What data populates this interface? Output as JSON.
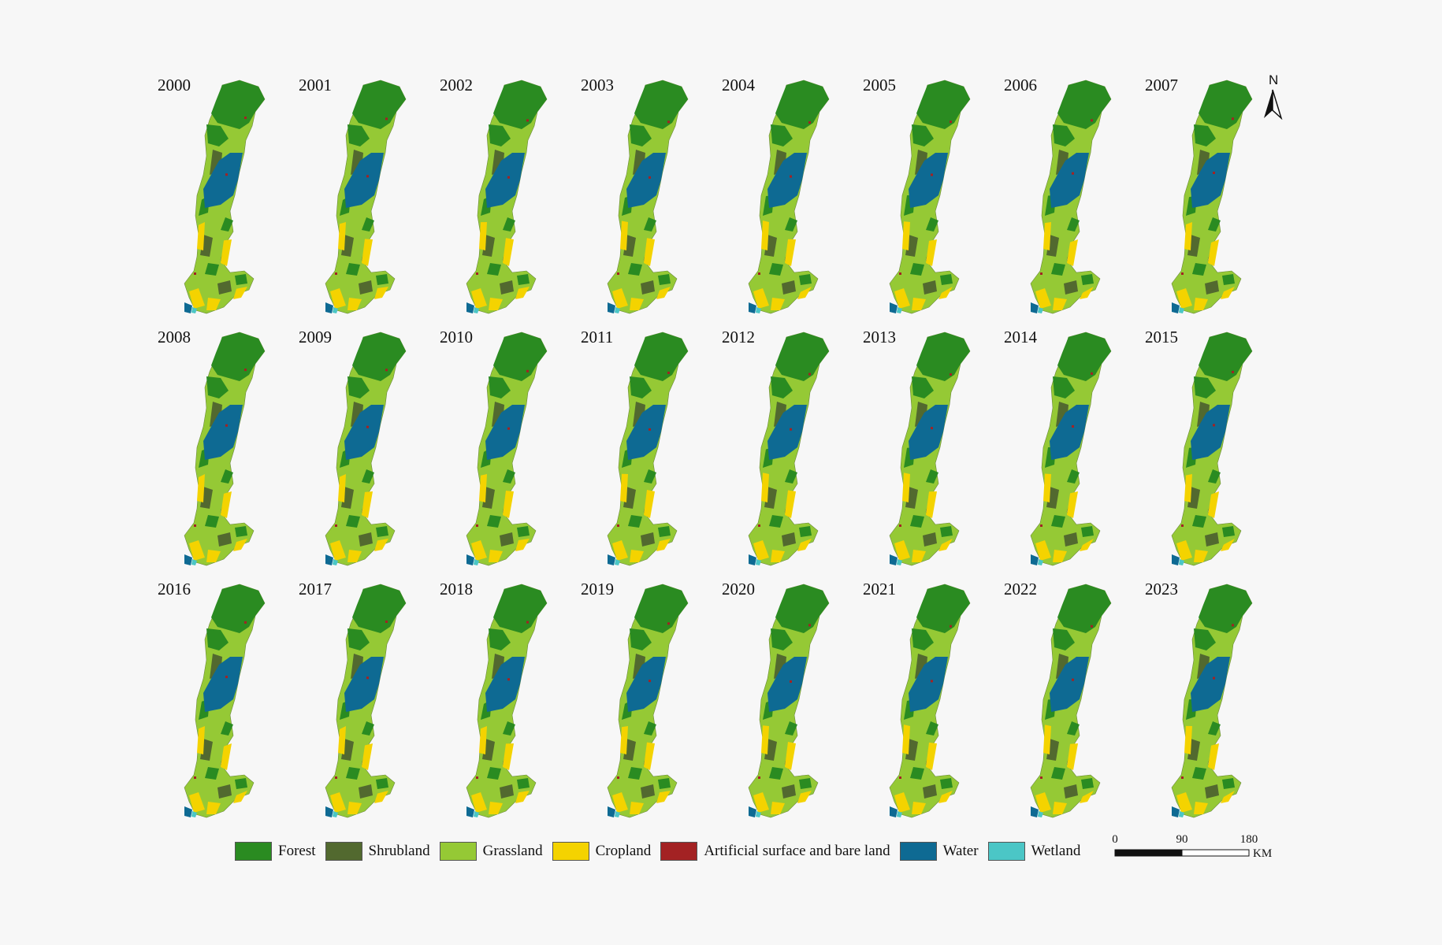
{
  "years": [
    "2000",
    "2001",
    "2002",
    "2003",
    "2004",
    "2005",
    "2006",
    "2007",
    "2008",
    "2009",
    "2010",
    "2011",
    "2012",
    "2013",
    "2014",
    "2015",
    "2016",
    "2017",
    "2018",
    "2019",
    "2020",
    "2021",
    "2022",
    "2023"
  ],
  "legend": [
    {
      "label": "Forest",
      "color": "#2a8b21"
    },
    {
      "label": "Shrubland",
      "color": "#52692f"
    },
    {
      "label": "Grassland",
      "color": "#95c935"
    },
    {
      "label": "Cropland",
      "color": "#f4d300"
    },
    {
      "label": "Artificial surface and bare land",
      "color": "#a32223"
    },
    {
      "label": "Water",
      "color": "#0e6a93"
    },
    {
      "label": "Wetland",
      "color": "#4bc6c6"
    }
  ],
  "scale": {
    "ticks": [
      "0",
      "90",
      "180"
    ],
    "unit": "KM"
  },
  "north": "N"
}
